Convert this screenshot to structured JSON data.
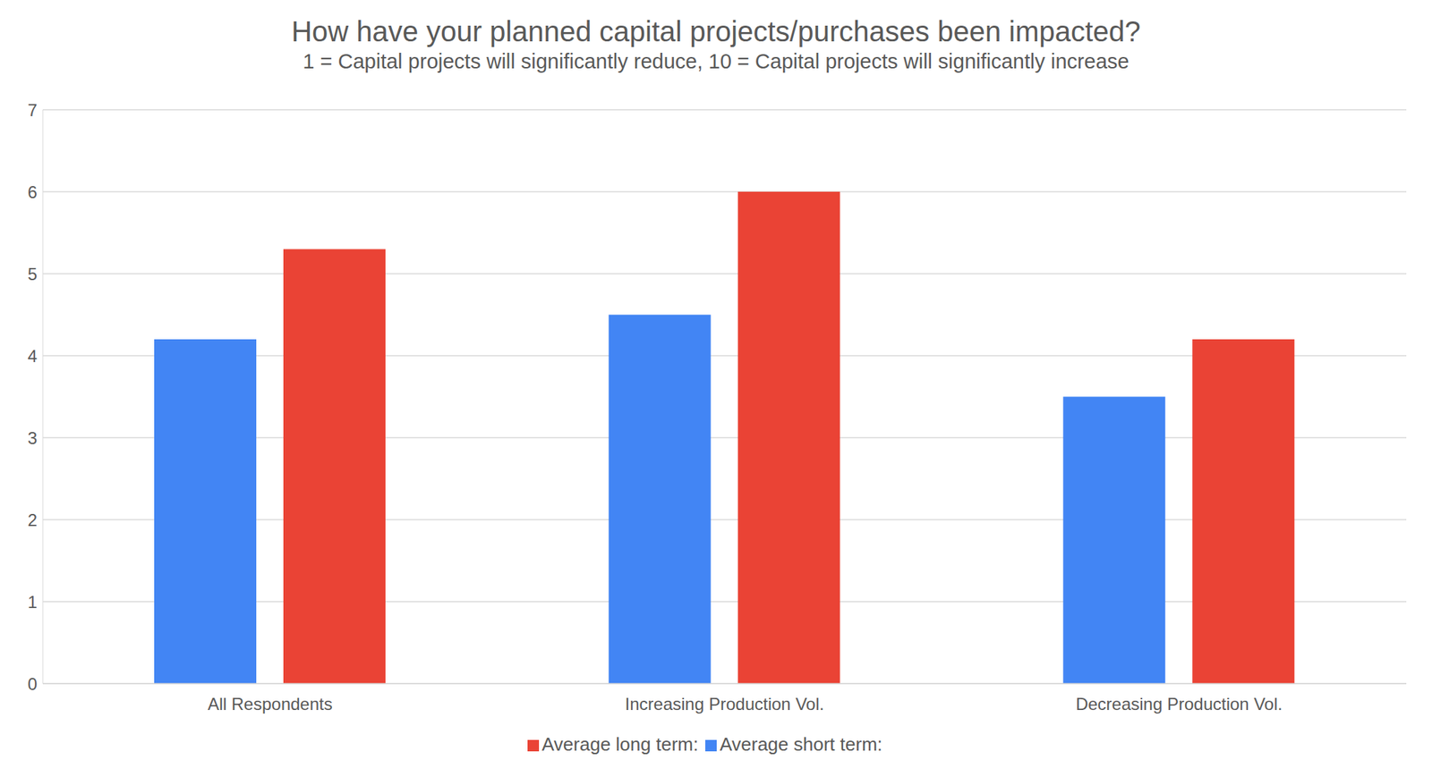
{
  "chart_data": {
    "type": "bar",
    "title": "How have your planned capital projects/purchases been impacted?",
    "subtitle": "1 = Capital projects will significantly reduce, 10 = Capital projects will significantly increase",
    "categories": [
      "All Respondents",
      "Increasing Production Vol.",
      "Decreasing Production Vol."
    ],
    "series": [
      {
        "name": "Average short term:",
        "color": "#4285f4",
        "values": [
          4.2,
          4.5,
          3.5
        ]
      },
      {
        "name": "Average long term:",
        "color": "#ea4335",
        "values": [
          5.3,
          6.0,
          4.2
        ]
      }
    ],
    "ylim": [
      0,
      7
    ],
    "yticks": [
      0,
      1,
      2,
      3,
      4,
      5,
      6,
      7
    ],
    "grid": true,
    "legend": "bottom"
  }
}
